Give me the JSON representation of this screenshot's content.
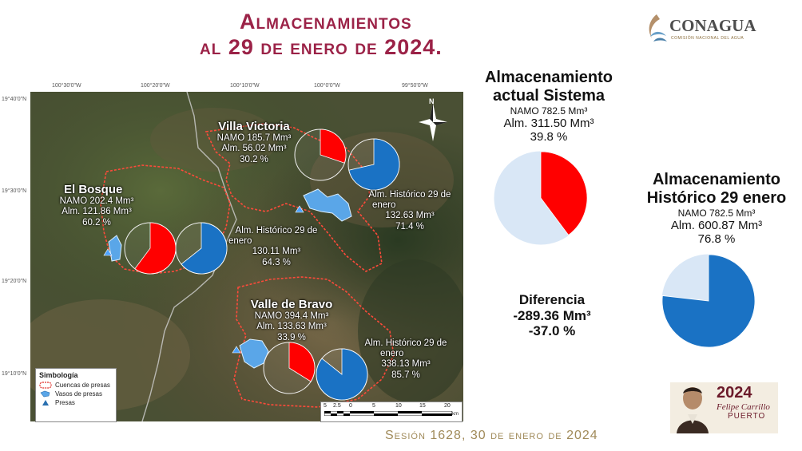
{
  "title": {
    "line1": "Almacenamientos",
    "line2": "al 29 de enero de 2024."
  },
  "logo": {
    "name": "CONAGUA",
    "subtitle": "COMISIÓN NACIONAL DEL AGUA",
    "icon": "water-wave-icon"
  },
  "map": {
    "coords_top": [
      "100°30'0\"W",
      "100°20'0\"W",
      "100°10'0\"W",
      "100°0'0\"W",
      "99°50'0\"W"
    ],
    "coords_left": [
      "19°40'0\"N",
      "19°30'0\"N",
      "19°20'0\"N",
      "19°10'0\"N"
    ],
    "north_label": "N",
    "dams": [
      {
        "name": "Villa Victoria",
        "namo": "NAMO 185.7 Mm³",
        "alm": "Alm. 56.02 Mm³",
        "pct": "30.2 %",
        "current_fraction": 0.302,
        "hist_label1": "Alm. Histórico 29 de",
        "hist_label2": "enero",
        "hist_value": "132.63 Mm³",
        "hist_pct": "71.4 %",
        "hist_fraction": 0.714
      },
      {
        "name": "El Bosque",
        "namo": "NAMO 202.4 Mm³",
        "alm": "Alm. 121.86 Mm³",
        "pct": "60.2 %",
        "current_fraction": 0.602,
        "hist_label1": "Alm. Histórico 29 de",
        "hist_label2": "enero",
        "hist_value": "130.11 Mm³",
        "hist_pct": "64.3 %",
        "hist_fraction": 0.643
      },
      {
        "name": "Valle de Bravo",
        "namo": "NAMO 394.4 Mm³",
        "alm": "Alm. 133.63 Mm³",
        "pct": "33.9 %",
        "current_fraction": 0.339,
        "hist_label1": "Alm. Histórico 29 de",
        "hist_label2": "enero",
        "hist_value": "338.13 Mm³",
        "hist_pct": "85.7 %",
        "hist_fraction": 0.857
      }
    ],
    "legend": {
      "title": "Simbología",
      "items": [
        "Cuencas de presas",
        "Vasos de presas",
        "Presas"
      ]
    },
    "scale": {
      "ticks": [
        "5",
        "2.5",
        "0",
        "5",
        "10",
        "15",
        "20"
      ],
      "unit": "km"
    }
  },
  "system": {
    "title1": "Almacenamiento",
    "title2": "actual Sistema",
    "namo": "NAMO 782.5 Mm³",
    "alm": "Alm. 311.50 Mm³",
    "pct": "39.8 %",
    "fraction": 0.398
  },
  "historic": {
    "title1": "Almacenamiento",
    "title2": "Histórico 29 enero",
    "namo": "NAMO 782.5 Mm³",
    "alm": "Alm. 600.87 Mm³",
    "pct": "76.8 %",
    "fraction": 0.768
  },
  "difference": {
    "title": "Diferencia",
    "value": "-289.36 Mm³",
    "pct": "-37.0 %"
  },
  "footer": "Sesión 1628, 30 de enero de 2024",
  "badge": {
    "year": "2024",
    "name1": "Felipe Carrillo",
    "name2": "PUERTO"
  },
  "colors": {
    "title": "#9b2247",
    "current": "#ff0000",
    "historic": "#1a72c4",
    "empty_light": "#d9e7f6",
    "footer": "#a08a59"
  }
}
